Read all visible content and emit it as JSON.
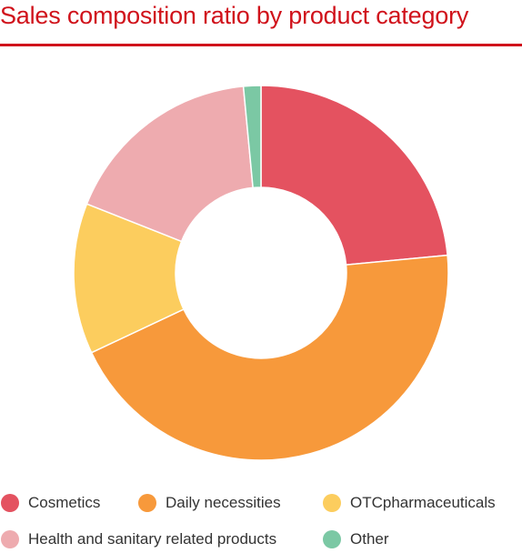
{
  "chart_data": {
    "type": "pie",
    "donut": true,
    "title": "Sales composition ratio by product category",
    "categories": [
      "Cosmetics",
      "Daily necessities",
      "OTCpharmaceuticals",
      "Health and sanitary related products",
      "Other"
    ],
    "values": [
      23.5,
      44.5,
      13.0,
      17.5,
      1.5
    ],
    "colors": [
      "#e45260",
      "#f7993b",
      "#fccd5e",
      "#eeabaf",
      "#7bc8a4"
    ],
    "legend_position": "bottom"
  }
}
